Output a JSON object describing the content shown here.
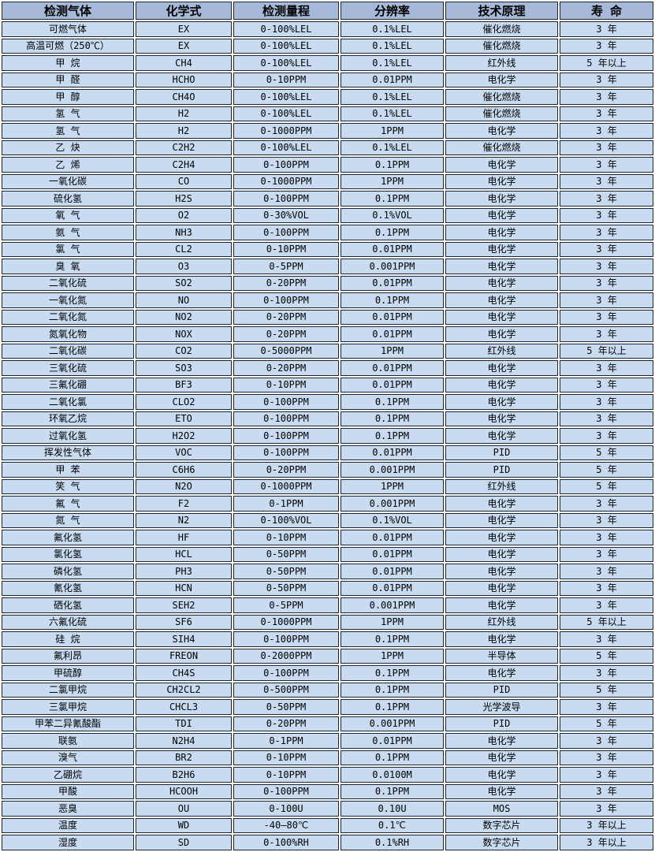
{
  "colors": {
    "header_bg": "#a6b9d8",
    "row_bg": "#c9dbf1",
    "border": "#1c2430",
    "gap": "#ffffff",
    "text": "#000000"
  },
  "table": {
    "headers": [
      "检测气体",
      "化学式",
      "检测量程",
      "分辨率",
      "技术原理",
      "寿 命"
    ],
    "rows": [
      [
        "可燃气体",
        "EX",
        "0-100%LEL",
        "0.1%LEL",
        "催化燃烧",
        "3 年"
      ],
      [
        "高温可燃（250℃）",
        "EX",
        "0-100%LEL",
        "0.1%LEL",
        "催化燃烧",
        "3 年"
      ],
      [
        "甲 烷",
        "CH4",
        "0-100%LEL",
        "0.1%LEL",
        "红外线",
        "5 年以上"
      ],
      [
        "甲 醛",
        "HCHO",
        "0-10PPM",
        "0.01PPM",
        "电化学",
        "3 年"
      ],
      [
        "甲 醇",
        "CH4O",
        "0-100%LEL",
        "0.1%LEL",
        "催化燃烧",
        "3 年"
      ],
      [
        "氢 气",
        "H2",
        "0-100%LEL",
        "0.1%LEL",
        "催化燃烧",
        "3 年"
      ],
      [
        "氢 气",
        "H2",
        "0-1000PPM",
        "1PPM",
        "电化学",
        "3 年"
      ],
      [
        "乙 炔",
        "C2H2",
        "0-100%LEL",
        "0.1%LEL",
        "催化燃烧",
        "3 年"
      ],
      [
        "乙 烯",
        "C2H4",
        "0-100PPM",
        "0.1PPM",
        "电化学",
        "3 年"
      ],
      [
        "一氧化碳",
        "CO",
        "0-1000PPM",
        "1PPM",
        "电化学",
        "3 年"
      ],
      [
        "硫化氢",
        "H2S",
        "0-100PPM",
        "0.1PPM",
        "电化学",
        "3 年"
      ],
      [
        "氧 气",
        "O2",
        "0-30%VOL",
        "0.1%VOL",
        "电化学",
        "3 年"
      ],
      [
        "氨 气",
        "NH3",
        "0-100PPM",
        "0.1PPM",
        "电化学",
        "3 年"
      ],
      [
        "氯 气",
        "CL2",
        "0-10PPM",
        "0.01PPM",
        "电化学",
        "3 年"
      ],
      [
        "臭 氧",
        "O3",
        "0-5PPM",
        "0.001PPM",
        "电化学",
        "3 年"
      ],
      [
        "二氧化硫",
        "SO2",
        "0-20PPM",
        "0.01PPM",
        "电化学",
        "3 年"
      ],
      [
        "一氧化氮",
        "NO",
        "0-100PPM",
        "0.1PPM",
        "电化学",
        "3 年"
      ],
      [
        "二氧化氮",
        "NO2",
        "0-20PPM",
        "0.01PPM",
        "电化学",
        "3 年"
      ],
      [
        "氮氧化物",
        "NOX",
        "0-20PPM",
        "0.01PPM",
        "电化学",
        "3 年"
      ],
      [
        "二氧化碳",
        "CO2",
        "0-5000PPM",
        "1PPM",
        "红外线",
        "5 年以上"
      ],
      [
        "三氧化硫",
        "SO3",
        "0-20PPM",
        "0.01PPM",
        "电化学",
        "3 年"
      ],
      [
        "三氟化硼",
        "BF3",
        "0-10PPM",
        "0.01PPM",
        "电化学",
        "3 年"
      ],
      [
        "二氧化氯",
        "CLO2",
        "0-100PPM",
        "0.1PPM",
        "电化学",
        "3 年"
      ],
      [
        "环氧乙烷",
        "ETO",
        "0-100PPM",
        "0.1PPM",
        "电化学",
        "3 年"
      ],
      [
        "过氧化氢",
        "H2O2",
        "0-100PPM",
        "0.1PPM",
        "电化学",
        "3 年"
      ],
      [
        "挥发性气体",
        "VOC",
        "0-100PPM",
        "0.01PPM",
        "PID",
        "5 年"
      ],
      [
        "甲 苯",
        "C6H6",
        "0-20PPM",
        "0.001PPM",
        "PID",
        "5 年"
      ],
      [
        "笑 气",
        "N2O",
        "0-1000PPM",
        "1PPM",
        "红外线",
        "5 年"
      ],
      [
        "氟 气",
        "F2",
        "0-1PPM",
        "0.001PPM",
        "电化学",
        "3 年"
      ],
      [
        "氮 气",
        "N2",
        "0-100%VOL",
        "0.1%VOL",
        "电化学",
        "3 年"
      ],
      [
        "氟化氢",
        "HF",
        "0-10PPM",
        "0.01PPM",
        "电化学",
        "3 年"
      ],
      [
        "氯化氢",
        "HCL",
        "0-50PPM",
        "0.01PPM",
        "电化学",
        "3 年"
      ],
      [
        "磷化氢",
        "PH3",
        "0-50PPM",
        "0.01PPM",
        "电化学",
        "3 年"
      ],
      [
        "氰化氢",
        "HCN",
        "0-50PPM",
        "0.01PPM",
        "电化学",
        "3 年"
      ],
      [
        "硒化氢",
        "SEH2",
        "0-5PPM",
        "0.001PPM",
        "电化学",
        "3 年"
      ],
      [
        "六氟化硫",
        "SF6",
        "0-1000PPM",
        "1PPM",
        "红外线",
        "5 年以上"
      ],
      [
        "硅 烷",
        "SIH4",
        "0-100PPM",
        "0.1PPM",
        "电化学",
        "3 年"
      ],
      [
        "氟利昂",
        "FREON",
        "0-2000PPM",
        "1PPM",
        "半导体",
        "5 年"
      ],
      [
        "甲硫醇",
        "CH4S",
        "0-100PPM",
        "0.1PPM",
        "电化学",
        "3 年"
      ],
      [
        "二氯甲烷",
        "CH2CL2",
        "0-500PPM",
        "0.1PPM",
        "PID",
        "5 年"
      ],
      [
        "三氯甲烷",
        "CHCL3",
        "0-50PPM",
        "0.1PPM",
        "光学波导",
        "3 年"
      ],
      [
        "甲苯二异氰酸酯",
        "TDI",
        "0-20PPM",
        "0.001PPM",
        "PID",
        "5 年"
      ],
      [
        "联氨",
        "N2H4",
        "0-1PPM",
        "0.01PPM",
        "电化学",
        "3 年"
      ],
      [
        "溴气",
        "BR2",
        "0-10PPM",
        "0.1PPM",
        "电化学",
        "3 年"
      ],
      [
        "乙硼烷",
        "B2H6",
        "0-10PPM",
        "0.0100M",
        "电化学",
        "3 年"
      ],
      [
        "甲酸",
        "HCOOH",
        "0-100PPM",
        "0.1PPM",
        "电化学",
        "3 年"
      ],
      [
        "恶臭",
        "OU",
        "0-100U",
        "0.10U",
        "MOS",
        "3 年"
      ],
      [
        "温度",
        "WD",
        "-40—80℃",
        "0.1℃",
        "数字芯片",
        "3 年以上"
      ],
      [
        "湿度",
        "SD",
        "0-100%RH",
        "0.1%RH",
        "数字芯片",
        "3 年以上"
      ]
    ]
  }
}
